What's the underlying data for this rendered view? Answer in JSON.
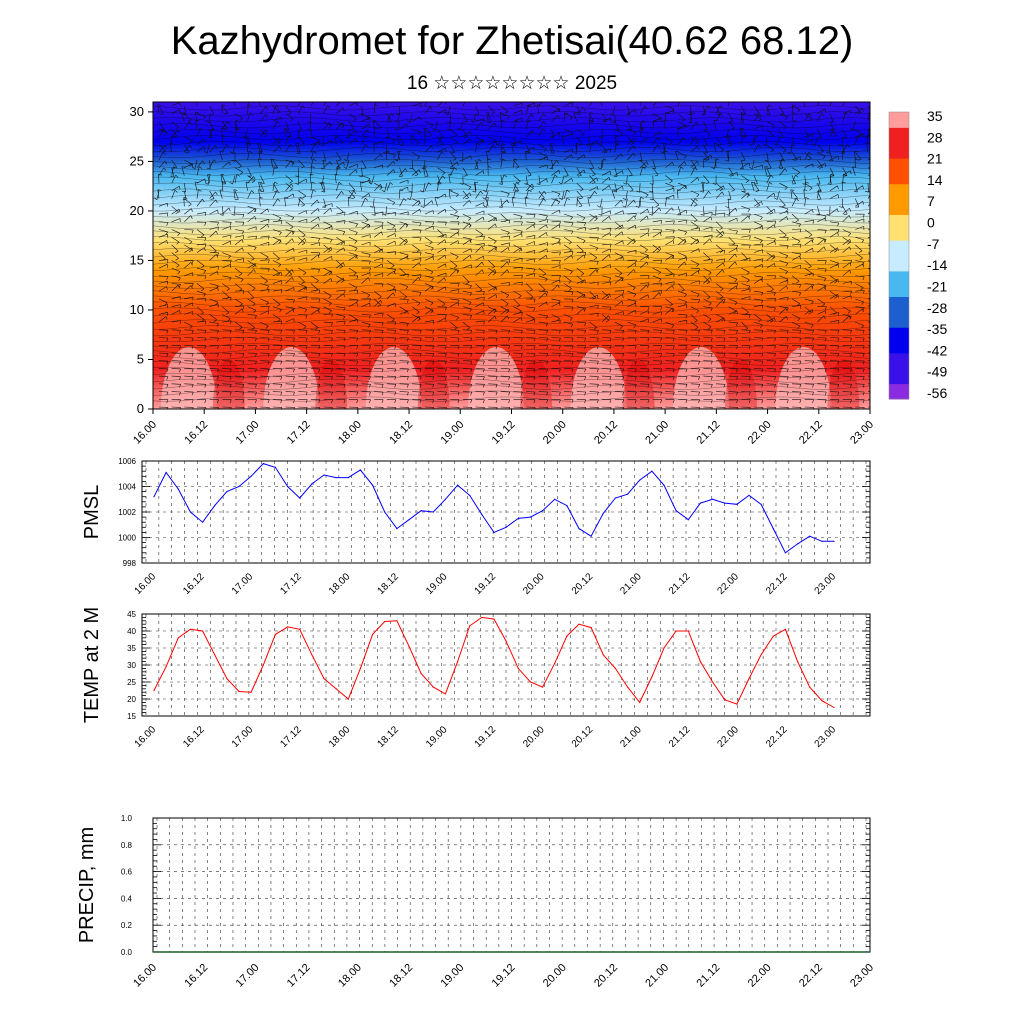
{
  "title": "Kazhydromet for Zhetisai(40.62 68.12)",
  "subtitle": "16 ☆☆☆☆☆☆☆☆ 2025",
  "colors": {
    "pmsl_line": "#0000ff",
    "temp_line": "#ff0000",
    "precip_line": "#1a5e2a",
    "colorbar": [
      "#ffb0b0",
      "#f03a2a",
      "#e80000",
      "#ff6a00",
      "#ffb000",
      "#ffff88",
      "#bde8ff",
      "#30b0ff",
      "#1050c0",
      "#0000ff",
      "#8a2be2"
    ]
  },
  "chart_data": [
    {
      "type": "heatmap",
      "panel": "cross-section",
      "x_ticks": [
        "16.00",
        "16.12",
        "17.00",
        "17.12",
        "18.00",
        "18.12",
        "19.00",
        "19.12",
        "20.00",
        "20.12",
        "21.00",
        "21.12",
        "22.00",
        "22.12",
        "23.00"
      ],
      "y_ticks": [
        "0",
        "5",
        "10",
        "15",
        "20",
        "25",
        "30"
      ],
      "ylim": [
        0,
        31
      ],
      "colorbar_labels": [
        "35",
        "28",
        "21",
        "14",
        "7",
        "0",
        "-7",
        "-14",
        "-21",
        "-28",
        "-35",
        "-42",
        "-49",
        "-56"
      ],
      "colorbar_range": [
        -60,
        38
      ],
      "layer_values": [
        {
          "height": 0,
          "value": 30
        },
        {
          "height": 4,
          "value": 22
        },
        {
          "height": 10,
          "value": 14
        },
        {
          "height": 14,
          "value": 2
        },
        {
          "height": 17,
          "value": -10
        },
        {
          "height": 20,
          "value": -30
        },
        {
          "height": 23.5,
          "value": -50
        },
        {
          "height": 25,
          "value": -58
        },
        {
          "height": 27,
          "value": -56
        },
        {
          "height": 31,
          "value": -60
        }
      ],
      "grid": false
    },
    {
      "type": "line",
      "ylabel": "PMSL",
      "x_ticks": [
        "16.00",
        "16.12",
        "17.00",
        "17.12",
        "18.00",
        "18.12",
        "19.00",
        "19.12",
        "20.00",
        "20.12",
        "21.00",
        "21.12",
        "22.00",
        "22.12",
        "23.00"
      ],
      "y_ticks": [
        "998",
        "1000",
        "1002",
        "1004",
        "1006"
      ],
      "ylim": [
        998,
        1006
      ],
      "grid": true,
      "series": [
        {
          "values": [
            1003.2,
            1005.1,
            1003.8,
            1002.0,
            1001.2,
            1002.5,
            1003.6,
            1004.0,
            1004.8,
            1005.8,
            1005.5,
            1004.0,
            1003.1,
            1004.2,
            1004.9,
            1004.7,
            1004.7,
            1005.3,
            1004.1,
            1002.0,
            1000.7,
            1001.4,
            1002.1,
            1002.0,
            1003.0,
            1004.1,
            1003.3,
            1001.8,
            1000.4,
            1000.8,
            1001.5,
            1001.6,
            1002.1,
            1003.0,
            1002.5,
            1000.7,
            1000.1,
            1001.9,
            1003.1,
            1003.4,
            1004.5,
            1005.2,
            1004.1,
            1002.1,
            1001.4,
            1002.7,
            1003.0,
            1002.7,
            1002.6,
            1003.3,
            1002.6,
            1000.7,
            998.8,
            999.5,
            1000.1,
            999.7,
            999.7
          ]
        }
      ]
    },
    {
      "type": "line",
      "ylabel": "TEMP at 2 M",
      "x_ticks": [
        "16.00",
        "16.12",
        "17.00",
        "17.12",
        "18.00",
        "18.12",
        "19.00",
        "19.12",
        "20.00",
        "20.12",
        "21.00",
        "21.12",
        "22.00",
        "22.12",
        "23.00"
      ],
      "y_ticks": [
        "15",
        "20",
        "25",
        "30",
        "35",
        "40",
        "45"
      ],
      "ylim": [
        15,
        45
      ],
      "grid": true,
      "series": [
        {
          "values": [
            22.5,
            29.5,
            38.0,
            40.5,
            40.0,
            33.0,
            26.0,
            22.2,
            22.0,
            30.0,
            39.0,
            41.2,
            40.5,
            33.0,
            26.0,
            23.0,
            20.0,
            29.0,
            39.0,
            42.8,
            43.0,
            35.5,
            27.5,
            23.5,
            21.5,
            31.0,
            41.5,
            44.0,
            43.5,
            37.0,
            29.0,
            25.0,
            23.5,
            30.5,
            38.5,
            42.0,
            41.0,
            33.0,
            29.0,
            23.5,
            19.0,
            26.5,
            35.0,
            40.0,
            40.0,
            31.0,
            25.0,
            19.8,
            18.5,
            26.0,
            33.0,
            38.5,
            40.5,
            31.0,
            23.5,
            19.5,
            17.5
          ]
        }
      ]
    },
    {
      "type": "line",
      "ylabel": "PRECIP, mm",
      "x_ticks": [
        "16.00",
        "16.12",
        "17.00",
        "17.12",
        "18.00",
        "18.12",
        "19.00",
        "19.12",
        "20.00",
        "20.12",
        "21.00",
        "21.12",
        "22.00",
        "22.12",
        "23.00"
      ],
      "y_ticks": [
        "0.0",
        "0.2",
        "0.4",
        "0.6",
        "0.8",
        "1.0"
      ],
      "ylim": [
        0,
        1
      ],
      "grid": true,
      "series": [
        {
          "values": [
            0,
            0,
            0,
            0,
            0,
            0,
            0,
            0,
            0,
            0,
            0,
            0,
            0,
            0,
            0,
            0,
            0,
            0,
            0,
            0,
            0,
            0,
            0,
            0,
            0,
            0,
            0,
            0,
            0,
            0,
            0,
            0,
            0,
            0,
            0,
            0,
            0,
            0,
            0,
            0,
            0,
            0,
            0,
            0,
            0,
            0,
            0,
            0,
            0,
            0,
            0,
            0,
            0,
            0,
            0,
            0,
            0
          ]
        }
      ]
    }
  ]
}
